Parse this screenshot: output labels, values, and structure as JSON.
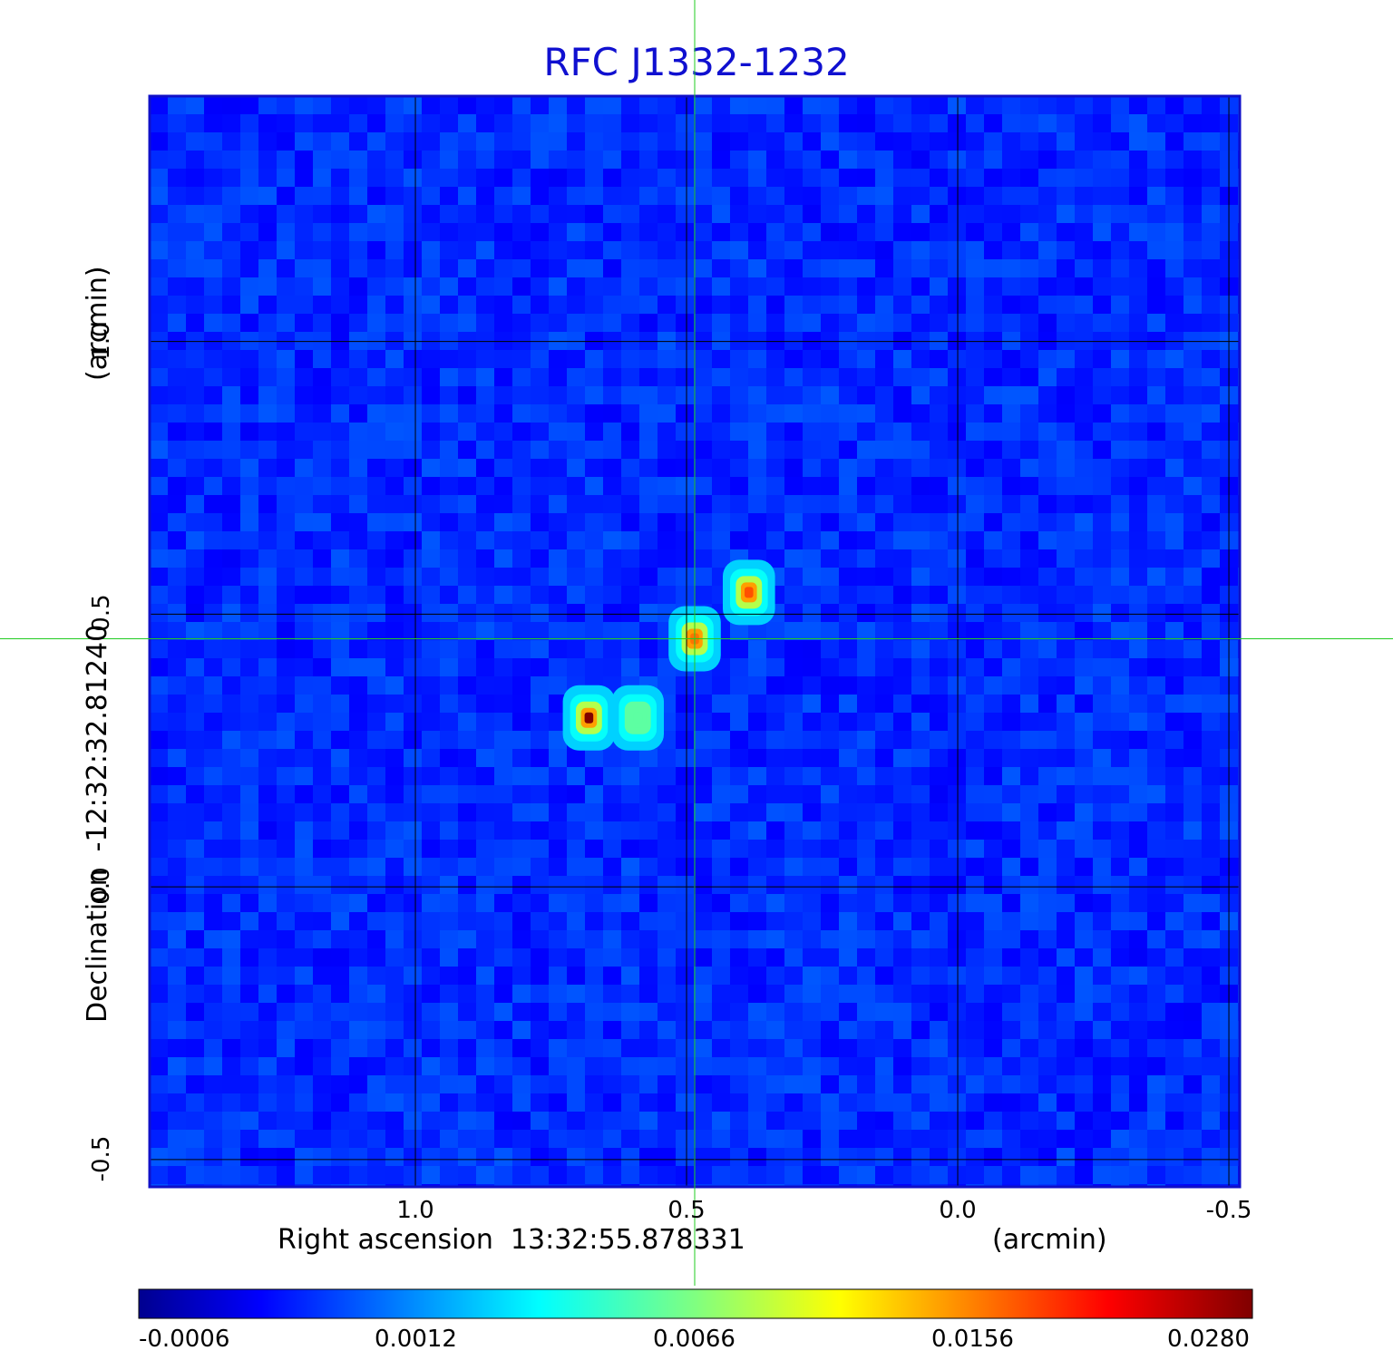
{
  "chart_data": {
    "type": "heatmap",
    "title": "RFC J1332-1232",
    "xlabel": "Right ascension  13:32:55.878331",
    "xunit": "(arcmin)",
    "ylabel": "Declination  -12:32:32.81240",
    "yunit": "(arcmin)",
    "xticks": [
      "1.0",
      "0.5",
      "0.0",
      "-0.5"
    ],
    "xtick_values": [
      1.0,
      0.5,
      0.0,
      -0.5
    ],
    "yticks": [
      "1.0",
      "0.5",
      "0.0",
      "-0.5"
    ],
    "ytick_values": [
      1.0,
      0.5,
      0.0,
      -0.5
    ],
    "xlim": [
      1.49,
      -0.52
    ],
    "ylim": [
      -0.55,
      1.45
    ],
    "grid": true,
    "crosshair": {
      "x": 0.485,
      "y": 0.455,
      "color": "#22cc22"
    },
    "colormap": "jet",
    "colorbar_ticks": [
      "-0.0006",
      "0.0012",
      "0.0066",
      "0.0156",
      "0.0280"
    ],
    "colorbar_range": [
      -0.0006,
      0.028
    ],
    "sources": [
      {
        "x": 0.68,
        "y": 0.31,
        "peak": 0.028
      },
      {
        "x": 0.59,
        "y": 0.31,
        "peak": 0.005
      },
      {
        "x": 0.485,
        "y": 0.455,
        "peak": 0.014
      },
      {
        "x": 0.385,
        "y": 0.54,
        "peak": 0.0155
      }
    ]
  }
}
